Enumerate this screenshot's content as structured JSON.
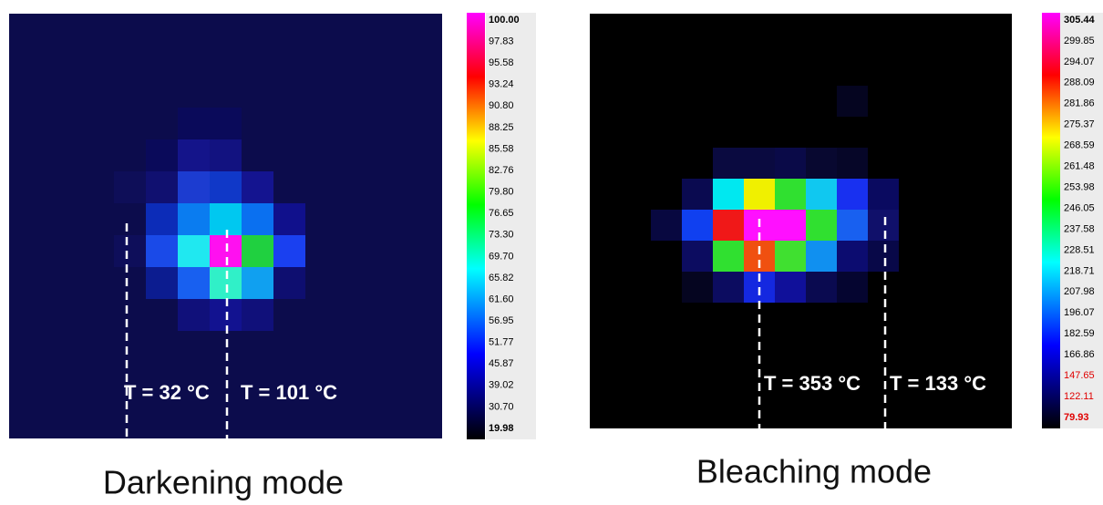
{
  "panels": [
    {
      "scale_labels": [
        "100.00",
        "97.83",
        "95.58",
        "93.24",
        "90.80",
        "88.25",
        "85.58",
        "82.76",
        "79.80",
        "76.65",
        "73.30",
        "69.70",
        "65.82",
        "61.60",
        "56.95",
        "51.77",
        "45.87",
        "39.02",
        "30.70",
        "19.98"
      ],
      "annotations": [
        "T = 32 °C",
        "T = 101 °C"
      ],
      "caption": "Darkening mode"
    },
    {
      "scale_labels": [
        "305.44",
        "299.85",
        "294.07",
        "288.09",
        "281.86",
        "275.37",
        "268.59",
        "261.48",
        "253.98",
        "246.05",
        "237.58",
        "228.51",
        "218.71",
        "207.98",
        "196.07",
        "182.59",
        "166.86",
        "147.65",
        "122.11",
        "79.93"
      ],
      "annotations": [
        "T = 353 °C",
        "T = 133 °C"
      ],
      "caption": "Bleaching mode"
    }
  ]
}
